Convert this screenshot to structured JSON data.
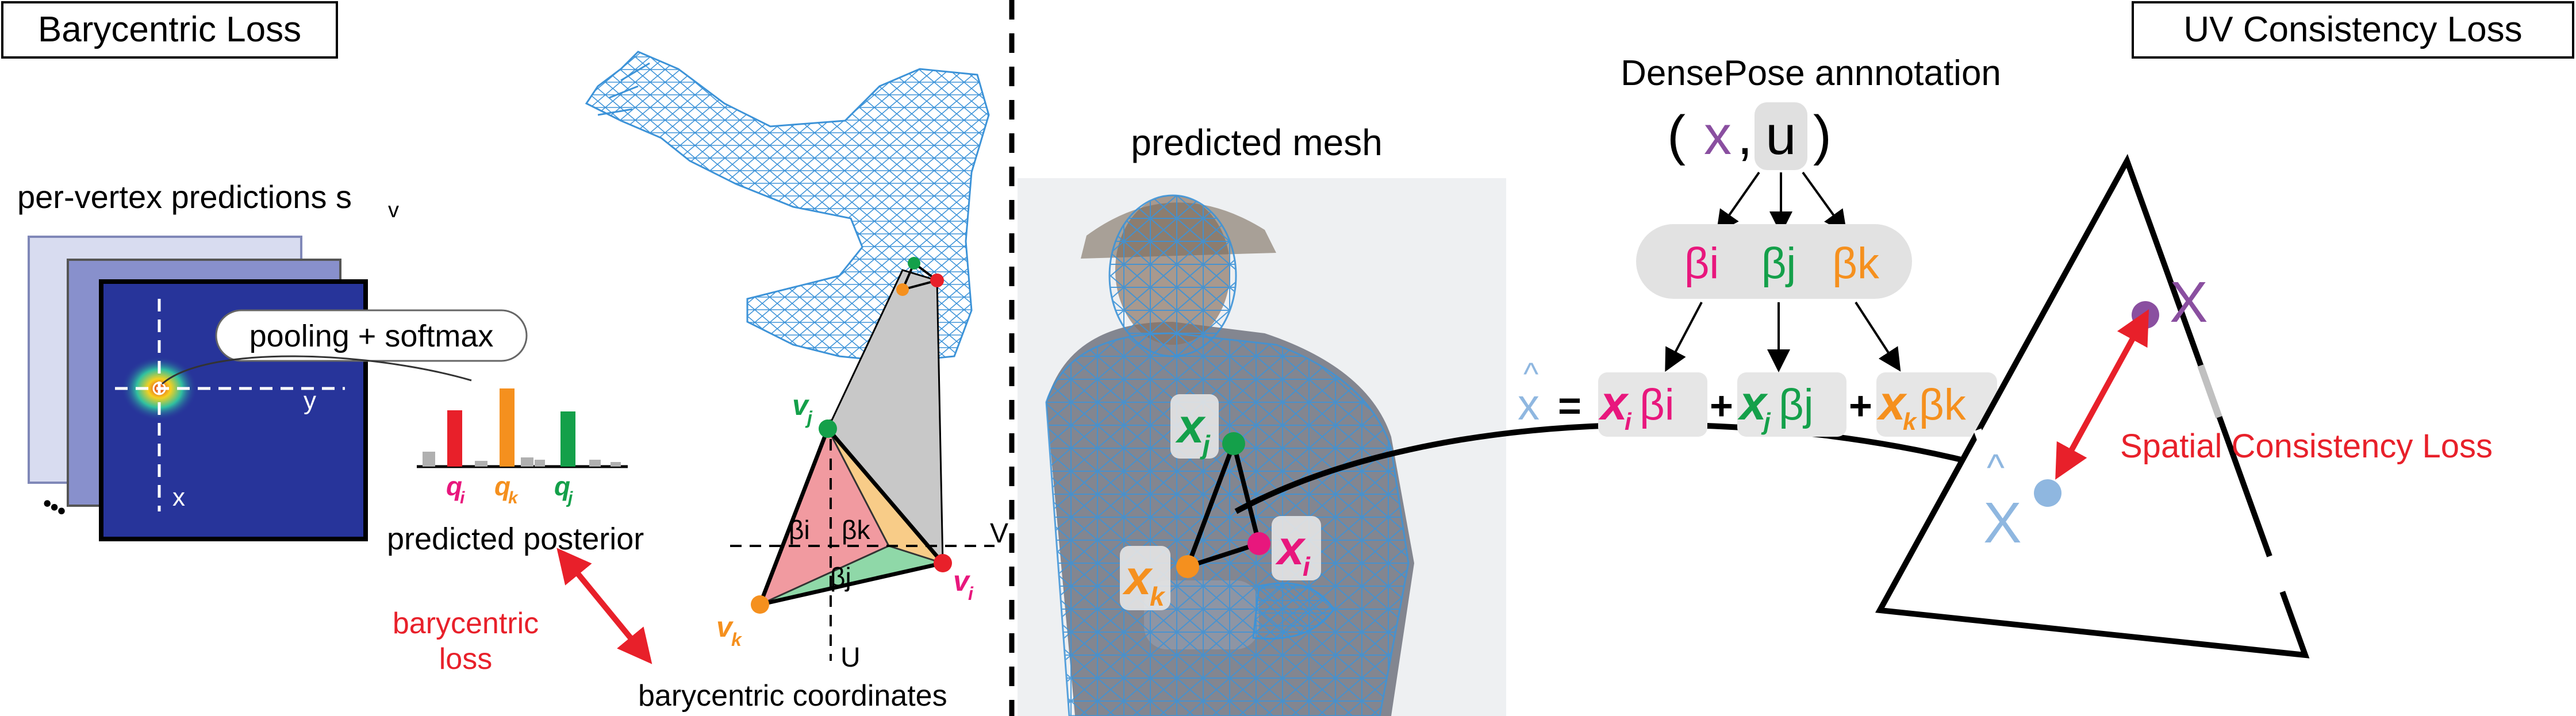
{
  "panels": {
    "left_title": "Barycentric Loss",
    "right_title": "UV Consistency Loss"
  },
  "left": {
    "per_vertex_label": "per-vertex predictions s",
    "per_vertex_sub": "v",
    "pooling_label": "pooling + softmax",
    "axis_y": "y",
    "axis_x": "x",
    "ellipsis": "•••",
    "q_i": "q",
    "q_i_sub": "i",
    "q_k": "q",
    "q_k_sub": "k",
    "q_j": "q",
    "q_j_sub": "j",
    "posterior_label": "predicted posterior",
    "loss_line1": "barycentric",
    "loss_line2": "loss",
    "v_j": "v",
    "v_j_sub": "j",
    "v_i": "v",
    "v_i_sub": "i",
    "v_k": "v",
    "v_k_sub": "k",
    "beta_i": "βi",
    "beta_k": "βk",
    "beta_j": "βj",
    "axis_V": "V",
    "axis_U": "U",
    "bary_label": "barycentric coordinates"
  },
  "middle": {
    "mesh_label": "predicted mesh",
    "x_j": "x",
    "x_j_sub": "j",
    "x_k": "x",
    "x_k_sub": "k",
    "x_i": "x",
    "x_i_sub": "i"
  },
  "right": {
    "annotation_label": "DensePose annnotation",
    "paren_open": "(",
    "ann_x": "x",
    "ann_comma": ",",
    "ann_u": "u",
    "paren_close": ")",
    "beta_i": "βi",
    "beta_j": "βj",
    "beta_k": "βk",
    "xhat": "x",
    "hat": "^",
    "eq": "=",
    "plus": "+",
    "term_i_x": "x",
    "term_i_sub": "i",
    "term_i_beta": "βi",
    "term_j_x": "x",
    "term_j_sub": "j",
    "term_j_beta": "βj",
    "term_k_x": "x",
    "term_k_sub": "k",
    "term_k_beta": "βk",
    "X_label": "X",
    "xhat_tri": "X",
    "spatial_label": "Spatial Consistency Loss"
  },
  "colors": {
    "red": "#e8202a",
    "green": "#14a04a",
    "orange": "#f5901e",
    "magenta": "#e8177d",
    "purple": "#8a4fa0",
    "blue_light": "#8fb7e0",
    "mesh_blue": "#3d93d8",
    "heatmap_blue": "#27349a",
    "gray_fill": "#c8c8c8"
  },
  "icons": [
    "double-arrow-icon",
    "arrow-icon"
  ]
}
